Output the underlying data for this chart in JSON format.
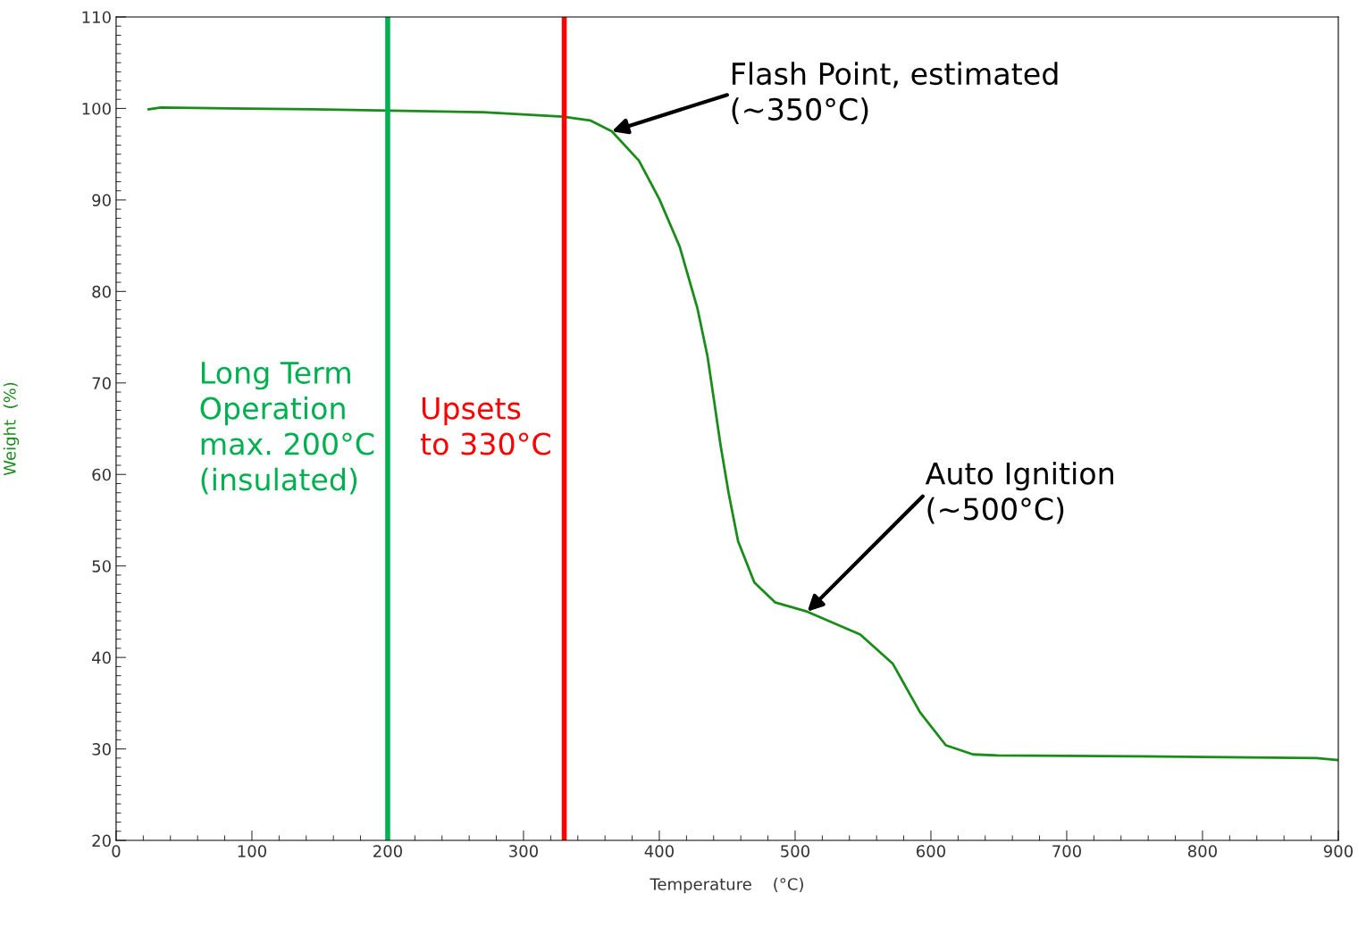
{
  "chart_data": {
    "type": "line",
    "xlabel": "Temperature    (°C)",
    "ylabel": "Weight  (%)",
    "x": [
      24,
      33,
      145,
      270,
      329,
      349,
      365,
      385,
      400,
      415,
      428,
      435.5,
      440,
      445,
      451,
      458,
      470,
      485.5,
      509,
      548,
      572,
      592,
      611,
      631,
      649,
      753,
      884,
      899
    ],
    "series": [
      {
        "color": "#1a8c1a",
        "values": [
          99.9,
          100.1,
          99.9,
          99.6,
          99.1,
          98.7,
          97.5,
          94.3,
          90.1,
          84.9,
          78.2,
          72.9,
          68.4,
          63.3,
          58.0,
          52.7,
          48.2,
          46.0,
          45.0,
          42.5,
          39.3,
          34.0,
          30.4,
          29.4,
          29.3,
          29.2,
          29.0,
          28.8
        ]
      }
    ],
    "xlim": [
      0,
      900
    ],
    "xticks": [
      0,
      100,
      200,
      300,
      400,
      500,
      600,
      700,
      800,
      900
    ],
    "ylim": [
      20,
      110
    ],
    "yticks": [
      20,
      30,
      40,
      50,
      60,
      70,
      80,
      90,
      100,
      110
    ],
    "grid": false,
    "legend": false,
    "marker": "none",
    "line_style": "solid",
    "ref_lines": [
      {
        "axis": "x",
        "value": 200,
        "label": "Long Term\nOperation\nmax. 200°C\n(insulated)",
        "color": "#00b050"
      },
      {
        "axis": "x",
        "value": 330,
        "label": "Upsets\nto 330°C",
        "color": "#ff0000"
      }
    ],
    "annotations": [
      {
        "text": "Flash Point, estimated\n(~350°C)",
        "x": 365,
        "y": 97.5
      },
      {
        "text": "Auto Ignition\n(~500°C)",
        "x": 509,
        "y": 45
      }
    ]
  }
}
